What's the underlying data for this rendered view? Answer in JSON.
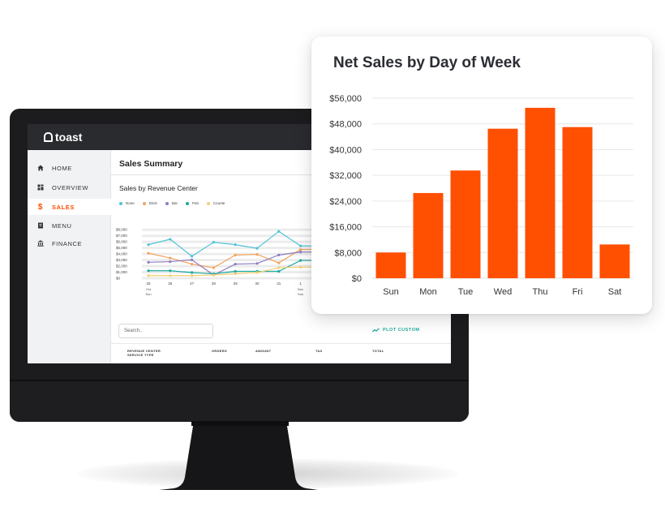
{
  "colors": {
    "accent": "#ff4c00",
    "bar": "#ff4f00",
    "header": "#2a2b2f",
    "teal": "#1eaaa0"
  },
  "app": {
    "logo": "toast"
  },
  "sidebar": {
    "items": [
      {
        "label": "HOME",
        "icon": "home-icon",
        "active": false
      },
      {
        "label": "OVERVIEW",
        "icon": "grid-icon",
        "active": false
      },
      {
        "label": "SALES",
        "icon": "dollar-icon",
        "active": true
      },
      {
        "label": "MENU",
        "icon": "menu-book-icon",
        "active": false
      },
      {
        "label": "FINANCE",
        "icon": "bank-icon",
        "active": false
      }
    ]
  },
  "main": {
    "title": "Sales Summary",
    "section": "Sales by Revenue Center",
    "search_placeholder": "Search..",
    "plot_custom_label": "PLOT CUSTOM",
    "table_headers": [
      "REVENUE CENTER\nSERVICE TYPE",
      "ORDERS",
      "AMOUNT",
      "TAX",
      "TOTAL"
    ]
  },
  "mini_chart": {
    "type": "line",
    "legend": [
      "None",
      "Dinin",
      "Bar",
      "Pati",
      "Counte"
    ],
    "y_ticks": [
      "$8,000",
      "$7,000",
      "$6,000",
      "$5,000",
      "$4,000",
      "$3,000",
      "$2,000",
      "$1,000",
      "$0"
    ],
    "x_ticks": [
      "25",
      "26",
      "27",
      "28",
      "29",
      "30",
      "31",
      "1",
      "2"
    ],
    "x_sub": [
      [
        "Oct",
        "Sun"
      ],
      [],
      [],
      [],
      [],
      [],
      [],
      [
        "Nov",
        "Sun"
      ],
      []
    ],
    "ylim": [
      0,
      9500
    ],
    "series": [
      {
        "name": "None",
        "color": "#4fc3d9",
        "values": [
          5400,
          6300,
          3500,
          5800,
          5400,
          4800,
          7600,
          5200,
          5200
        ]
      },
      {
        "name": "Dinin",
        "color": "#f2a35f",
        "values": [
          4000,
          3200,
          2200,
          1600,
          3700,
          3800,
          2400,
          4600,
          4600
        ]
      },
      {
        "name": "Bar",
        "color": "#8e7cc3",
        "values": [
          2500,
          2600,
          2900,
          400,
          2200,
          2300,
          3700,
          4200,
          4200
        ]
      },
      {
        "name": "Pati",
        "color": "#1eaaa0",
        "values": [
          1100,
          1100,
          800,
          600,
          1000,
          1000,
          1000,
          2800,
          2800
        ]
      },
      {
        "name": "Counte",
        "color": "#f5cf72",
        "values": [
          300,
          300,
          300,
          400,
          600,
          800,
          1600,
          1700,
          1700
        ]
      }
    ]
  },
  "card": {
    "title": "Net Sales by Day of Week"
  },
  "chart_data": {
    "type": "bar",
    "title": "Net Sales by Day of Week",
    "categories": [
      "Sun",
      "Mon",
      "Tue",
      "Wed",
      "Thu",
      "Fri",
      "Sat"
    ],
    "values": [
      8000,
      26500,
      33500,
      46500,
      53000,
      47000,
      10500
    ],
    "ylim": [
      0,
      56000
    ],
    "y_ticks": [
      0,
      8000,
      16000,
      24000,
      32000,
      40000,
      48000,
      56000
    ],
    "y_tick_labels": [
      "$0",
      "$8,000",
      "$16,000",
      "$24,000",
      "$32,000",
      "$40,000",
      "$48,000",
      "$56,000"
    ],
    "grid": true,
    "xlabel": "",
    "ylabel": ""
  }
}
